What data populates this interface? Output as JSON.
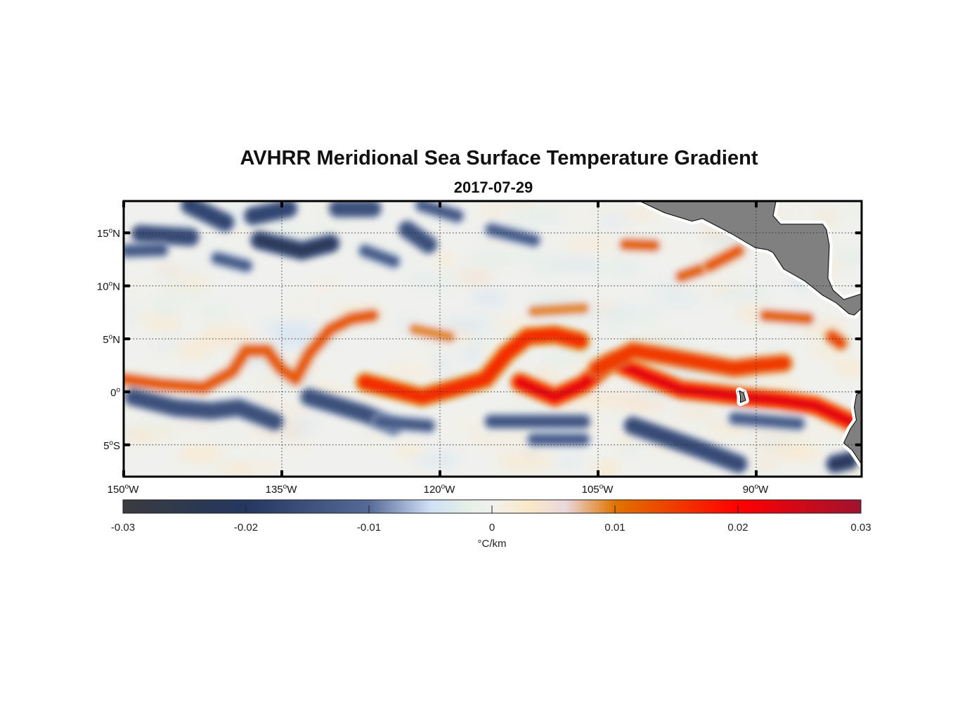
{
  "chart_data": {
    "type": "heatmap",
    "title": "AVHRR Meridional Sea Surface Temperature Gradient",
    "subtitle": "2017-07-29",
    "xlim": [
      -150,
      -80
    ],
    "ylim": [
      -8,
      18
    ],
    "grid": true,
    "x_ticks": [
      {
        "value": -150,
        "label": "150",
        "suffix": "W"
      },
      {
        "value": -135,
        "label": "135",
        "suffix": "W"
      },
      {
        "value": -120,
        "label": "120",
        "suffix": "W"
      },
      {
        "value": -105,
        "label": "105",
        "suffix": "W"
      },
      {
        "value": -90,
        "label": "90",
        "suffix": "W"
      }
    ],
    "y_ticks": [
      {
        "value": -5,
        "label": "5",
        "suffix": "S"
      },
      {
        "value": 0,
        "label": "0",
        "suffix": ""
      },
      {
        "value": 5,
        "label": "5",
        "suffix": "N"
      },
      {
        "value": 10,
        "label": "10",
        "suffix": "N"
      },
      {
        "value": 15,
        "label": "15",
        "suffix": "N"
      }
    ],
    "colorbar": {
      "range": [
        -0.03,
        0.03
      ],
      "ticks": [
        "-0.03",
        "-0.02",
        "-0.01",
        "0",
        "0.01",
        "0.02",
        "0.03"
      ],
      "label": "°C/km",
      "stops": [
        {
          "v": -0.03,
          "c": "#3a3b3f"
        },
        {
          "v": -0.02,
          "c": "#243760"
        },
        {
          "v": -0.01,
          "c": "#566a98"
        },
        {
          "v": -0.005,
          "c": "#cfe0f6"
        },
        {
          "v": -0.002,
          "c": "#e5efe6"
        },
        {
          "v": 0,
          "c": "#f1f1ee"
        },
        {
          "v": 0.003,
          "c": "#fbe8c8"
        },
        {
          "v": 0.006,
          "c": "#ead8dc"
        },
        {
          "v": 0.01,
          "c": "#e07400"
        },
        {
          "v": 0.02,
          "c": "#ff0000"
        },
        {
          "v": 0.03,
          "c": "#a0122f"
        }
      ]
    },
    "land_color": "#808080",
    "features": [
      {
        "value": 0.012,
        "points": [
          [
            -150,
            1.2
          ],
          [
            -146.4,
            0.7
          ],
          [
            -142.4,
            0.4
          ],
          [
            -139.7,
            1.9
          ],
          [
            -138.4,
            3.9
          ],
          [
            -136.4,
            3.9
          ],
          [
            -135.1,
            2.2
          ],
          [
            -133.7,
            1.2
          ],
          [
            -132.4,
            3.6
          ],
          [
            -130.4,
            5.9
          ],
          [
            -128.4,
            6.9
          ],
          [
            -126.4,
            7.2
          ]
        ]
      },
      {
        "value": 0.016,
        "points": [
          [
            -127.1,
            0.9
          ],
          [
            -124.4,
            0.2
          ],
          [
            -121.7,
            -0.5
          ],
          [
            -118.4,
            0.4
          ],
          [
            -115.7,
            1.2
          ],
          [
            -113.7,
            3.6
          ],
          [
            -111.7,
            5.2
          ],
          [
            -109.1,
            5.4
          ],
          [
            -106.7,
            4.8
          ]
        ]
      },
      {
        "value": 0.019,
        "points": [
          [
            -112.4,
            0.9
          ],
          [
            -109.1,
            -0.5
          ],
          [
            -106.4,
            0.7
          ],
          [
            -103.7,
            2.9
          ],
          [
            -100.4,
            1.5
          ],
          [
            -97.1,
            0.2
          ],
          [
            -94.4,
            -0.1
          ],
          [
            -91.1,
            -0.5
          ],
          [
            -87.7,
            -0.8
          ],
          [
            -84.4,
            -1.3
          ],
          [
            -81.1,
            -2.8
          ]
        ]
      },
      {
        "value": 0.015,
        "points": [
          [
            -105.1,
            2.2
          ],
          [
            -101.7,
            3.9
          ],
          [
            -97.7,
            3.2
          ],
          [
            -92.1,
            2.2
          ],
          [
            -89.7,
            2.5
          ],
          [
            -87.4,
            2.7
          ]
        ]
      },
      {
        "value": 0.011,
        "points": [
          [
            -102.4,
            13.9
          ],
          [
            -99.7,
            13.8
          ]
        ]
      },
      {
        "value": 0.011,
        "points": [
          [
            -97.1,
            10.9
          ],
          [
            -95.1,
            11.6
          ]
        ]
      },
      {
        "value": 0.012,
        "points": [
          [
            -94.4,
            11.9
          ],
          [
            -91.7,
            13.3
          ]
        ]
      },
      {
        "value": 0.011,
        "points": [
          [
            -89.1,
            7.2
          ],
          [
            -85.1,
            6.9
          ]
        ]
      },
      {
        "value": 0.009,
        "points": [
          [
            -111.1,
            7.6
          ],
          [
            -106.4,
            7.9
          ]
        ]
      },
      {
        "value": 0.009,
        "points": [
          [
            -122.4,
            5.9
          ],
          [
            -119.1,
            5.2
          ]
        ]
      },
      {
        "value": 0.014,
        "points": [
          [
            -82.8,
            5.2
          ],
          [
            -82.0,
            4.6
          ]
        ]
      },
      {
        "value": -0.015,
        "points": [
          [
            -149.1,
            -0.5
          ],
          [
            -145.1,
            -1.5
          ],
          [
            -141.7,
            -1.8
          ],
          [
            -139.1,
            -1.5
          ],
          [
            -135.7,
            -2.8
          ]
        ]
      },
      {
        "value": -0.015,
        "points": [
          [
            -132.4,
            -0.5
          ],
          [
            -127.1,
            -2.1
          ],
          [
            -124.4,
            -3.2
          ]
        ]
      },
      {
        "value": -0.013,
        "points": [
          [
            -125.7,
            -2.8
          ],
          [
            -121.1,
            -3.2
          ]
        ]
      },
      {
        "value": -0.014,
        "points": [
          [
            -115.1,
            -2.8
          ],
          [
            -106.4,
            -2.8
          ]
        ]
      },
      {
        "value": -0.016,
        "points": [
          [
            -101.7,
            -3.2
          ],
          [
            -95.1,
            -5.5
          ],
          [
            -91.7,
            -6.8
          ]
        ]
      },
      {
        "value": -0.012,
        "points": [
          [
            -111.1,
            -4.5
          ],
          [
            -106.4,
            -4.5
          ]
        ]
      },
      {
        "value": -0.012,
        "points": [
          [
            -92.0,
            -2.5
          ],
          [
            -86.0,
            -3.0
          ]
        ]
      },
      {
        "value": -0.018,
        "points": [
          [
            -82.5,
            -6.8
          ],
          [
            -81.2,
            -6.5
          ]
        ]
      },
      {
        "value": -0.016,
        "points": [
          [
            -148.4,
            14.9
          ],
          [
            -143.7,
            14.6
          ]
        ]
      },
      {
        "value": -0.013,
        "points": [
          [
            -149.7,
            13.3
          ],
          [
            -146.4,
            13.4
          ]
        ]
      },
      {
        "value": -0.017,
        "points": [
          [
            -143.7,
            17.6
          ],
          [
            -140.4,
            16.0
          ]
        ]
      },
      {
        "value": -0.017,
        "points": [
          [
            -137.7,
            16.6
          ],
          [
            -134.4,
            17.3
          ]
        ]
      },
      {
        "value": -0.019,
        "points": [
          [
            -137.1,
            14.3
          ],
          [
            -133.1,
            13.3
          ],
          [
            -130.4,
            14.0
          ]
        ]
      },
      {
        "value": -0.015,
        "points": [
          [
            -129.7,
            17.3
          ],
          [
            -126.4,
            17.3
          ]
        ]
      },
      {
        "value": -0.015,
        "points": [
          [
            -123.1,
            15.3
          ],
          [
            -121.1,
            13.9
          ]
        ]
      },
      {
        "value": -0.013,
        "points": [
          [
            -121.7,
            17.6
          ],
          [
            -118.4,
            16.6
          ]
        ]
      },
      {
        "value": -0.012,
        "points": [
          [
            -115.1,
            15.3
          ],
          [
            -111.1,
            14.3
          ]
        ]
      },
      {
        "value": -0.012,
        "points": [
          [
            -127.1,
            13.3
          ],
          [
            -124.4,
            12.3
          ]
        ]
      },
      {
        "value": -0.012,
        "points": [
          [
            -141.1,
            12.6
          ],
          [
            -138.4,
            11.9
          ]
        ]
      }
    ],
    "land": [
      [
        [
          -101.7,
          18.3
        ],
        [
          -98.7,
          16.9
        ],
        [
          -96.1,
          16.1
        ],
        [
          -95.1,
          16.35
        ],
        [
          -92.4,
          14.95
        ],
        [
          -90.1,
          13.6
        ],
        [
          -88.9,
          13.4
        ],
        [
          -88.4,
          13.14
        ],
        [
          -87.4,
          11.6
        ],
        [
          -85.4,
          10.46
        ],
        [
          -83.7,
          9.12
        ],
        [
          -82.4,
          8.38
        ],
        [
          -81.2,
          7.37
        ],
        [
          -80.7,
          7.24
        ],
        [
          -80,
          7.91
        ],
        [
          -80,
          9.25
        ],
        [
          -81.7,
          8.71
        ],
        [
          -82.7,
          9.58
        ],
        [
          -83.2,
          10.72
        ],
        [
          -83.07,
          13.8
        ],
        [
          -83.33,
          15.28
        ],
        [
          -83.7,
          15.82
        ],
        [
          -87.7,
          15.82
        ],
        [
          -88.4,
          16.62
        ],
        [
          -88.07,
          18.3
        ]
      ],
      [
        [
          -80,
          0
        ],
        [
          -80.5,
          -0.27
        ],
        [
          -80.7,
          -1.47
        ],
        [
          -80.5,
          -2.68
        ],
        [
          -81.07,
          -3.49
        ],
        [
          -81.7,
          -4.83
        ],
        [
          -80.9,
          -5.5
        ],
        [
          -80,
          -6.84
        ]
      ],
      [
        [
          -91.6,
          0.1
        ],
        [
          -91.2,
          -0.1
        ],
        [
          -91.0,
          -0.8
        ],
        [
          -91.5,
          -1.0
        ],
        [
          -91.5,
          -0.4
        ]
      ]
    ]
  }
}
